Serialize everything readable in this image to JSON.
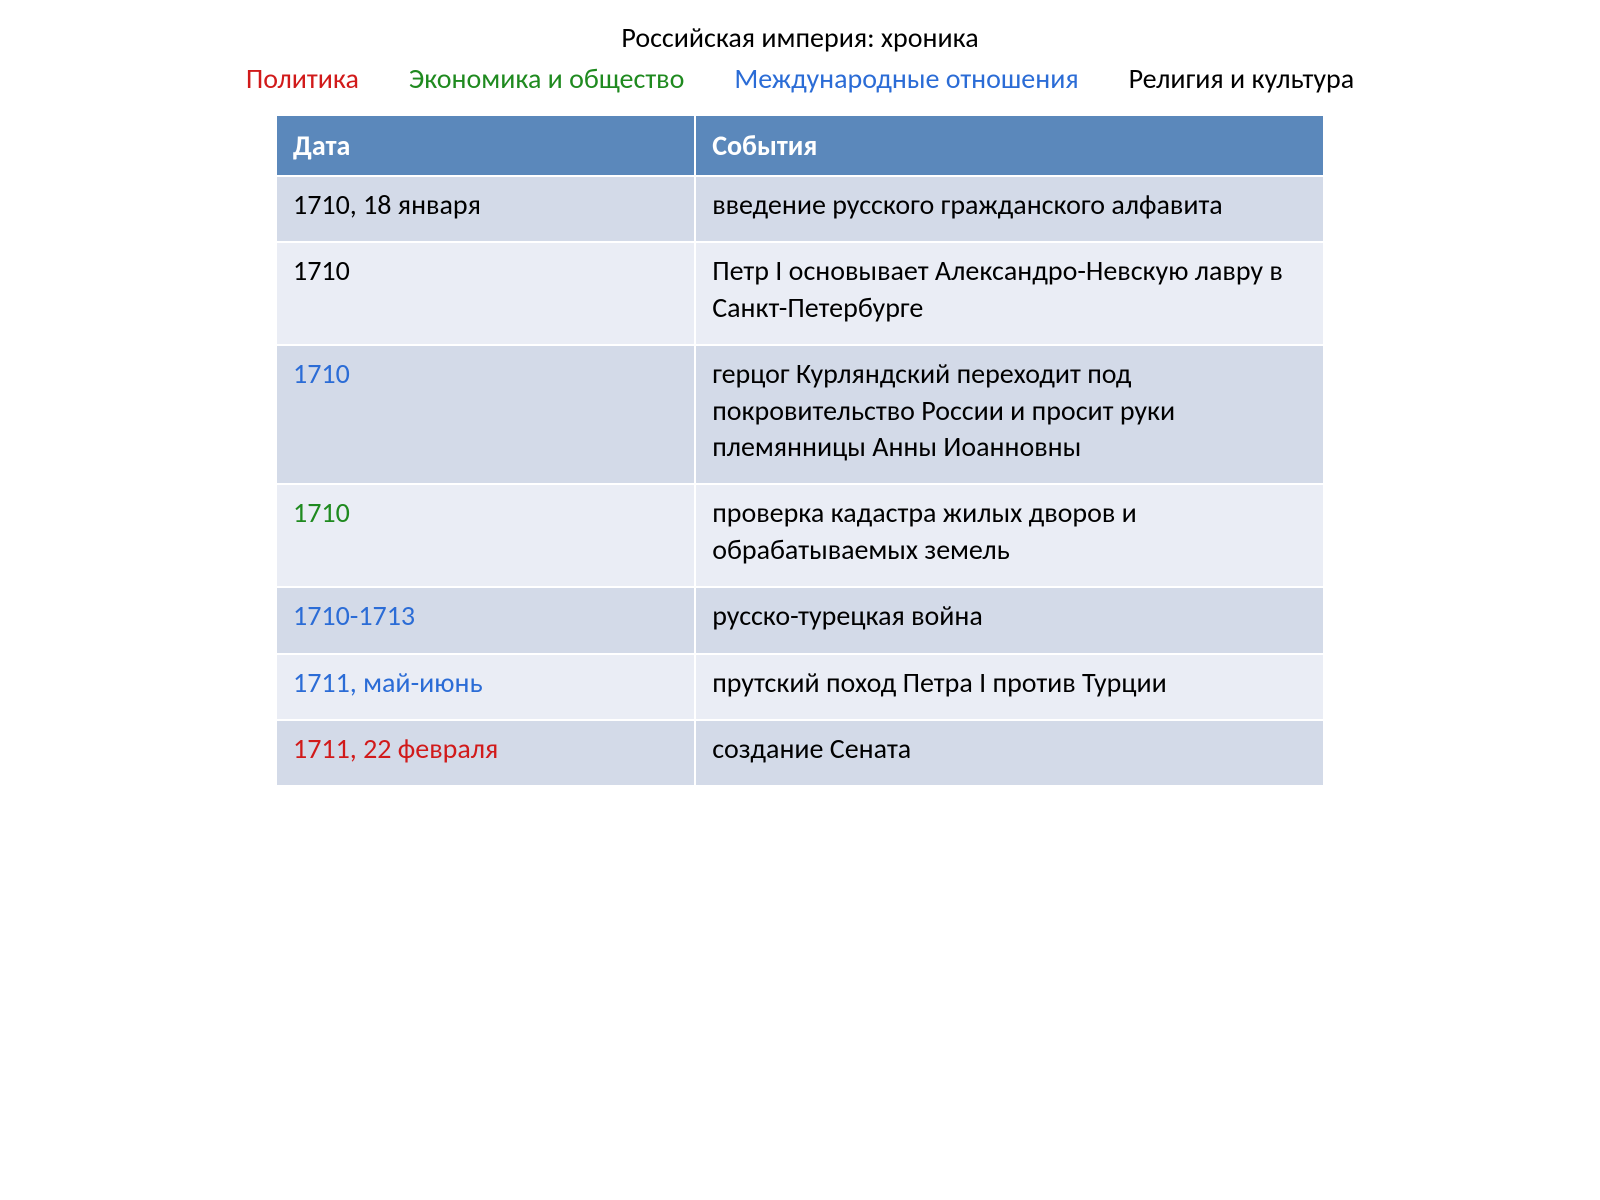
{
  "title": "Российская империя: хроника",
  "legend": [
    {
      "label": "Политика",
      "color": "#d11a1a"
    },
    {
      "label": "Экономика и общество",
      "color": "#1f8a1f"
    },
    {
      "label": "Международные отношения",
      "color": "#2b6cd6"
    },
    {
      "label": "Религия и культура",
      "color": "#000000"
    }
  ],
  "table": {
    "header_bg": "#5b88bb",
    "row_colors": [
      "#d3dae8",
      "#eaedf5"
    ],
    "columns": [
      "Дата",
      "События"
    ],
    "rows": [
      {
        "date": "1710, 18 января",
        "date_color": "#000000",
        "event": "введение русского гражданского алфавита"
      },
      {
        "date": "1710",
        "date_color": "#000000",
        "event": "Петр I основывает Александро-Невскую лавру в Санкт-Петербурге"
      },
      {
        "date": "1710",
        "date_color": "#2b6cd6",
        "event": "герцог Курляндский переходит под покровительство России и просит руки племянницы Анны Иоанновны"
      },
      {
        "date": "1710",
        "date_color": "#1f8a1f",
        "event": "проверка кадастра жилых дворов и обрабатываемых земель"
      },
      {
        "date": "1710-1713",
        "date_color": "#2b6cd6",
        "event": "русско-турецкая война"
      },
      {
        "date": "1711, май-июнь",
        "date_color": "#2b6cd6",
        "event": "прутский поход Петра I против Турции"
      },
      {
        "date": "1711, 22 февраля",
        "date_color": "#d11a1a",
        "event": "создание Сената"
      }
    ]
  }
}
